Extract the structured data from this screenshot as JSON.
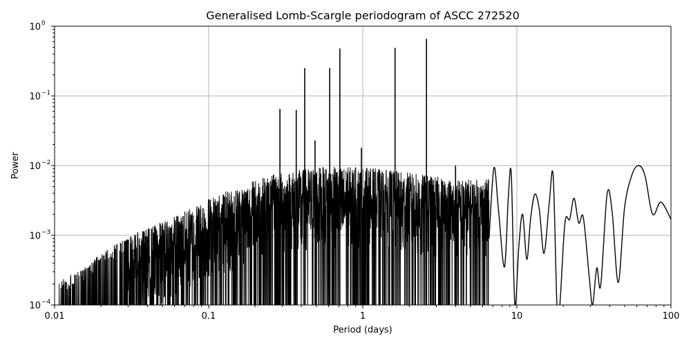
{
  "chart_data": {
    "type": "line",
    "title": "Generalised Lomb-Scargle periodogram of ASCC 272520",
    "xlabel": "Period (days)",
    "ylabel": "Power",
    "xscale": "log",
    "yscale": "log",
    "xlim": [
      0.01,
      100
    ],
    "ylim": [
      0.0001,
      1
    ],
    "grid": true,
    "x_ticks": [
      0.01,
      0.1,
      1,
      10,
      100
    ],
    "x_tick_labels": [
      "0.01",
      "0.1",
      "1",
      "10",
      "100"
    ],
    "y_ticks": [
      0.0001,
      0.001,
      0.01,
      0.1,
      1
    ],
    "y_tick_labels": [
      {
        "base": "10",
        "exp": "−4"
      },
      {
        "base": "10",
        "exp": "−3"
      },
      {
        "base": "10",
        "exp": "−2"
      },
      {
        "base": "10",
        "exp": "−1"
      },
      {
        "base": "10",
        "exp": "0"
      }
    ],
    "line_color": "#000000",
    "grid_color": "#b0b0b0",
    "major_peaks": [
      {
        "period": 2.59,
        "power": 0.66
      },
      {
        "period": 1.62,
        "power": 0.49
      },
      {
        "period": 0.71,
        "power": 0.48
      },
      {
        "period": 0.61,
        "power": 0.25
      },
      {
        "period": 0.42,
        "power": 0.25
      },
      {
        "period": 0.37,
        "power": 0.063
      },
      {
        "period": 0.29,
        "power": 0.065
      },
      {
        "period": 0.49,
        "power": 0.023
      },
      {
        "period": 0.98,
        "power": 0.018
      },
      {
        "period": 4.0,
        "power": 0.01
      },
      {
        "period": 7.1,
        "power": 0.0093
      },
      {
        "period": 9.2,
        "power": 0.0075
      },
      {
        "period": 13.1,
        "power": 0.0039
      },
      {
        "period": 17.2,
        "power": 0.0072
      },
      {
        "period": 23.5,
        "power": 0.0034
      },
      {
        "period": 38.5,
        "power": 0.0039
      },
      {
        "period": 62.0,
        "power": 0.01
      },
      {
        "period": 86.0,
        "power": 0.003
      }
    ],
    "smooth_tail": [
      {
        "period": 6.6,
        "power": 0.0009
      },
      {
        "period": 7.1,
        "power": 0.0093
      },
      {
        "period": 7.6,
        "power": 0.0023
      },
      {
        "period": 8.3,
        "power": 0.00035
      },
      {
        "period": 8.8,
        "power": 0.0035
      },
      {
        "period": 9.2,
        "power": 0.0075
      },
      {
        "period": 9.7,
        "power": 0.0001
      },
      {
        "period": 10.3,
        "power": 0.0007
      },
      {
        "period": 10.9,
        "power": 0.002
      },
      {
        "period": 11.6,
        "power": 0.00045
      },
      {
        "period": 12.3,
        "power": 0.0018
      },
      {
        "period": 13.1,
        "power": 0.0039
      },
      {
        "period": 14.0,
        "power": 0.0023
      },
      {
        "period": 15.0,
        "power": 0.00055
      },
      {
        "period": 16.2,
        "power": 0.0028
      },
      {
        "period": 17.2,
        "power": 0.0072
      },
      {
        "period": 18.2,
        "power": 0.0001
      },
      {
        "period": 19.0,
        "power": 0.0001
      },
      {
        "period": 20.5,
        "power": 0.0015
      },
      {
        "period": 22.0,
        "power": 0.0017
      },
      {
        "period": 23.5,
        "power": 0.0034
      },
      {
        "period": 25.2,
        "power": 0.0015
      },
      {
        "period": 27.0,
        "power": 0.0018
      },
      {
        "period": 29.5,
        "power": 0.00025
      },
      {
        "period": 31.0,
        "power": 0.0001
      },
      {
        "period": 33.0,
        "power": 0.00034
      },
      {
        "period": 35.0,
        "power": 0.00019
      },
      {
        "period": 38.5,
        "power": 0.0039
      },
      {
        "period": 41.5,
        "power": 0.0022
      },
      {
        "period": 45.5,
        "power": 0.00021
      },
      {
        "period": 50.0,
        "power": 0.0025
      },
      {
        "period": 56.0,
        "power": 0.0075
      },
      {
        "period": 62.0,
        "power": 0.01
      },
      {
        "period": 68.0,
        "power": 0.007
      },
      {
        "period": 76.0,
        "power": 0.002
      },
      {
        "period": 86.0,
        "power": 0.003
      },
      {
        "period": 100.0,
        "power": 0.0017
      }
    ],
    "noise_envelope": [
      {
        "period": 0.01,
        "power": 0.00012
      },
      {
        "period": 0.012,
        "power": 0.00016
      },
      {
        "period": 0.016,
        "power": 0.00022
      },
      {
        "period": 0.02,
        "power": 0.00035
      },
      {
        "period": 0.03,
        "power": 0.0006
      },
      {
        "period": 0.045,
        "power": 0.0009
      },
      {
        "period": 0.07,
        "power": 0.0014
      },
      {
        "period": 0.1,
        "power": 0.0022
      },
      {
        "period": 0.15,
        "power": 0.003
      },
      {
        "period": 0.2,
        "power": 0.004
      },
      {
        "period": 0.3,
        "power": 0.005
      },
      {
        "period": 0.5,
        "power": 0.006
      },
      {
        "period": 1.0,
        "power": 0.006
      },
      {
        "period": 2.0,
        "power": 0.005
      },
      {
        "period": 4.0,
        "power": 0.004
      }
    ]
  }
}
